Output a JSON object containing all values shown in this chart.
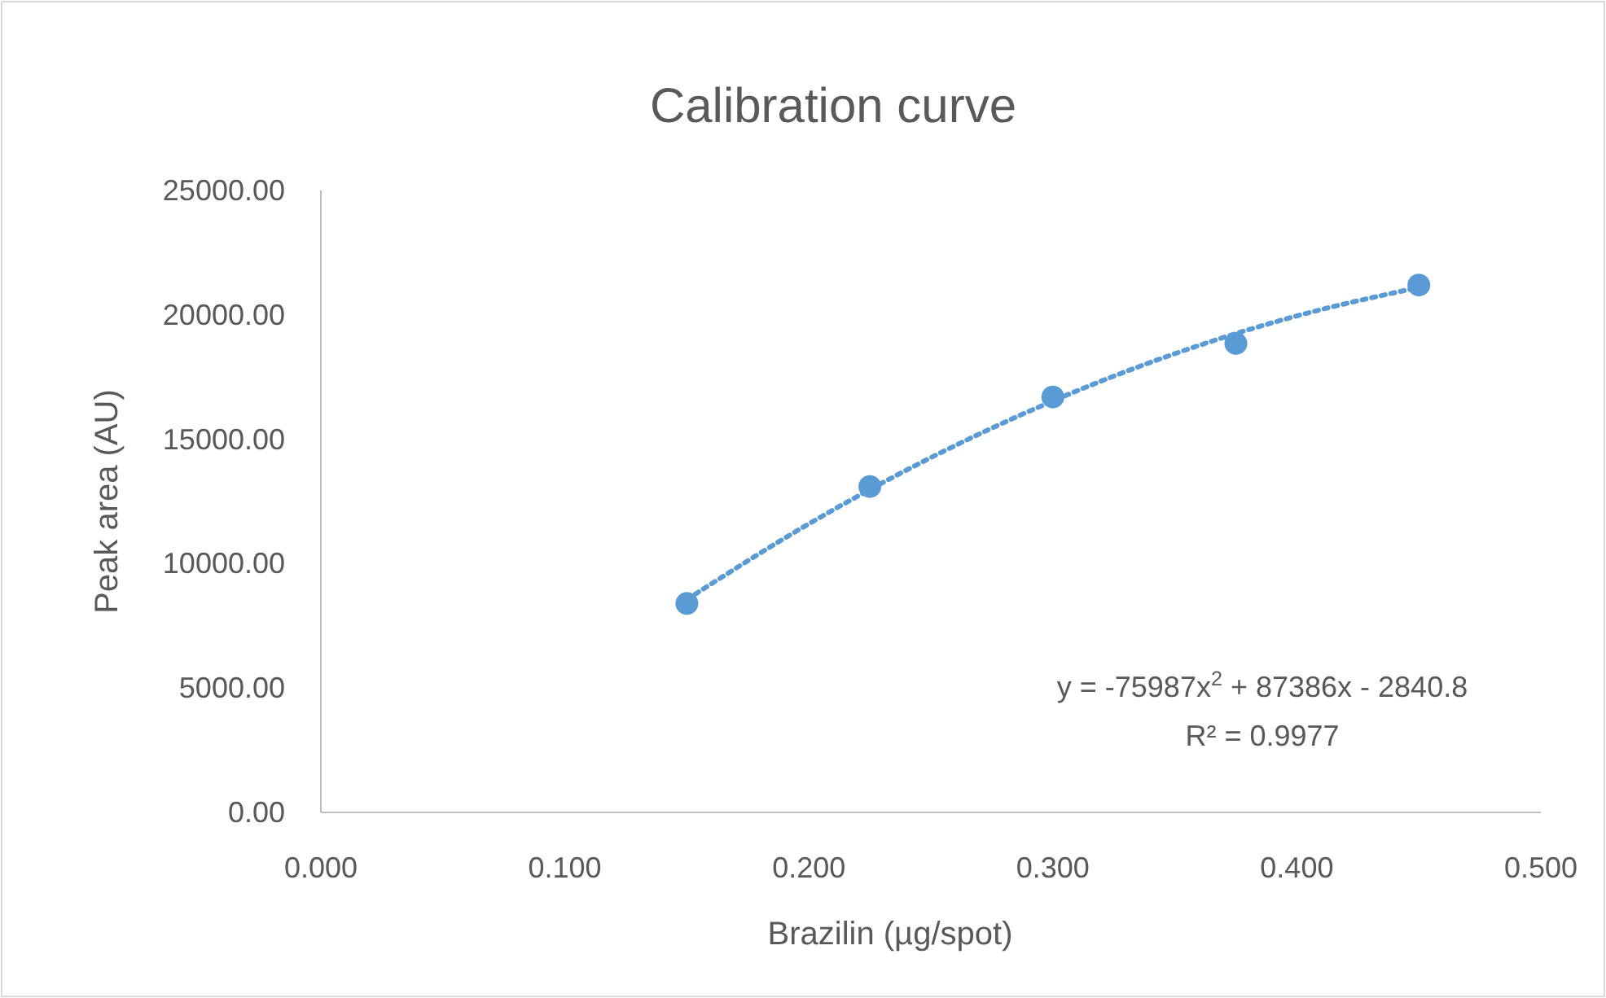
{
  "chart_data": {
    "type": "scatter",
    "title": "Calibration curve",
    "xlabel": "Brazilin (µg/spot)",
    "ylabel": "Peak area (AU)",
    "xlim": [
      0,
      0.5
    ],
    "xticks": [
      {
        "value": 0,
        "label": "0.000"
      },
      {
        "value": 0.1,
        "label": "0.100"
      },
      {
        "value": 0.2,
        "label": "0.200"
      },
      {
        "value": 0.3,
        "label": "0.300"
      },
      {
        "value": 0.4,
        "label": "0.400"
      },
      {
        "value": 0.5,
        "label": "0.500"
      }
    ],
    "ylim": [
      0,
      25000
    ],
    "yticks": [
      {
        "value": 0,
        "label": "0.00"
      },
      {
        "value": 5000,
        "label": "5000.00"
      },
      {
        "value": 10000,
        "label": "10000.00"
      },
      {
        "value": 15000,
        "label": "15000.00"
      },
      {
        "value": 20000,
        "label": "20000.00"
      },
      {
        "value": 25000,
        "label": "25000.00"
      }
    ],
    "grid": false,
    "series": [
      {
        "color": "#5b9bd5",
        "marker": "circle",
        "x": [
          0.15,
          0.225,
          0.3,
          0.375,
          0.45
        ],
        "values": [
          8400,
          13100,
          16700,
          18850,
          21200
        ]
      },
      {
        "type": "line",
        "color": "#5b9bd5",
        "line_style": "dotted",
        "x": [
          0.15,
          0.2,
          0.25,
          0.3,
          0.35,
          0.4,
          0.45
        ],
        "values": [
          8560,
          11600,
          14260,
          16540,
          18440,
          19960,
          21100
        ]
      }
    ],
    "annotations": [
      "y = -75987x$^{2}$ + 87386x - 2840.8",
      "R² = 0.9977"
    ]
  }
}
